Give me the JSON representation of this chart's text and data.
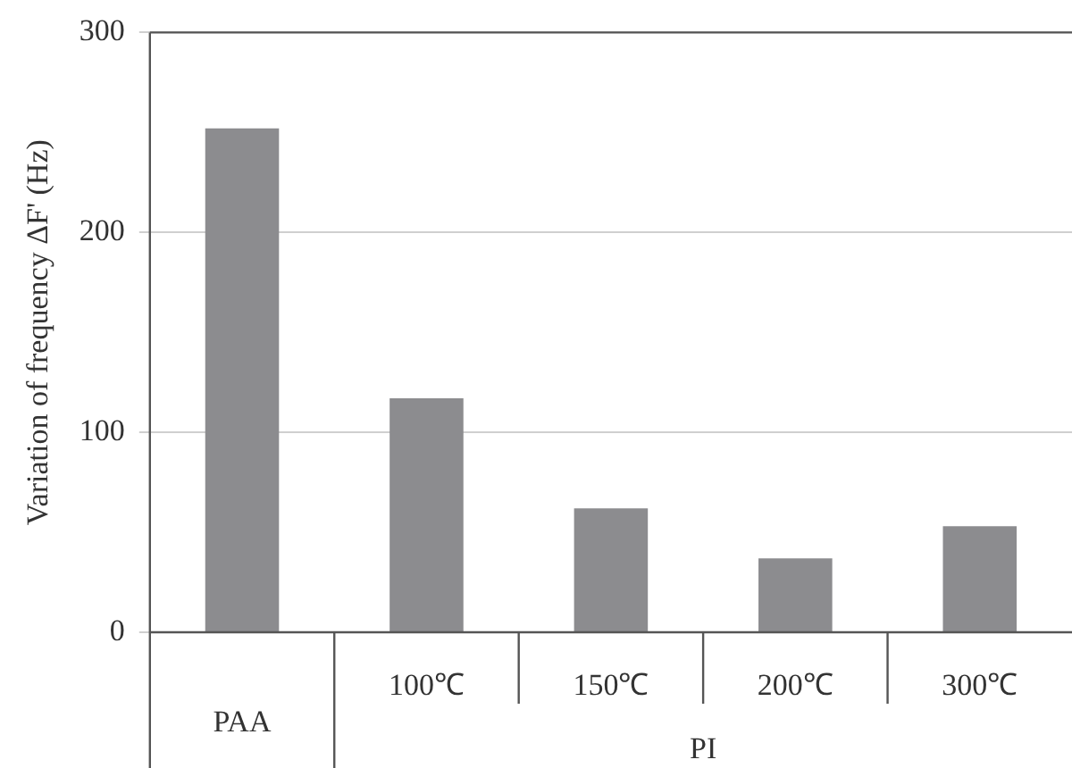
{
  "chart_data": {
    "type": "bar",
    "ylabel": "Variation of frequency ΔF' (Hz)",
    "categories": [
      "PAA",
      "100℃",
      "150℃",
      "200℃",
      "300℃"
    ],
    "values": [
      252,
      117,
      62,
      37,
      53
    ],
    "color": "#8c8c8f",
    "ylim": [
      0,
      300
    ],
    "yticks": [
      0,
      100,
      200,
      300
    ],
    "grid": "y",
    "annotations": [
      "PI"
    ]
  }
}
